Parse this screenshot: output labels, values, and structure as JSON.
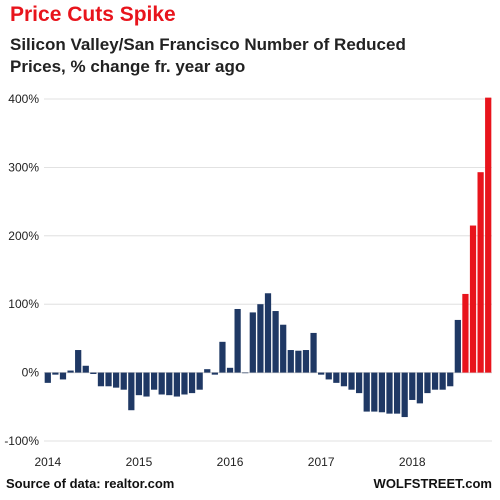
{
  "chart_data": {
    "type": "bar",
    "title": "Price Cuts Spike",
    "subtitle": "Silicon Valley/San Francisco Number of Reduced Prices, % change fr. year ago",
    "ylim": [
      -100,
      400
    ],
    "yticks": [
      "-100%",
      "0%",
      "100%",
      "200%",
      "300%",
      "400%"
    ],
    "ytick_values": [
      -100,
      0,
      100,
      200,
      300,
      400
    ],
    "xticks": [
      {
        "label": "2014",
        "index": 0
      },
      {
        "label": "2015",
        "index": 12
      },
      {
        "label": "2016",
        "index": 24
      },
      {
        "label": "2017",
        "index": 36
      },
      {
        "label": "2018",
        "index": 48
      }
    ],
    "grid": "horizontal",
    "colors": {
      "normal": "#1f3864",
      "highlight": "#e8141c",
      "grid": "#d9d9d9"
    },
    "values": [
      -15,
      -3,
      -10,
      3,
      33,
      10,
      -2,
      -20,
      -20,
      -22,
      -25,
      -55,
      -33,
      -35,
      -25,
      -32,
      -33,
      -35,
      -32,
      -30,
      -25,
      5,
      -3,
      45,
      7,
      93,
      0,
      88,
      100,
      116,
      90,
      70,
      33,
      32,
      33,
      58,
      -3,
      -10,
      -15,
      -20,
      -25,
      -30,
      -57,
      -57,
      -58,
      -60,
      -60,
      -65,
      -40,
      -45,
      -30,
      -25,
      -25,
      -20,
      77,
      115,
      215,
      293,
      402
    ],
    "highlight_from_index": 55
  },
  "footer": {
    "source": "Source of data: realtor.com",
    "brand": "WOLFSTREET.com"
  }
}
